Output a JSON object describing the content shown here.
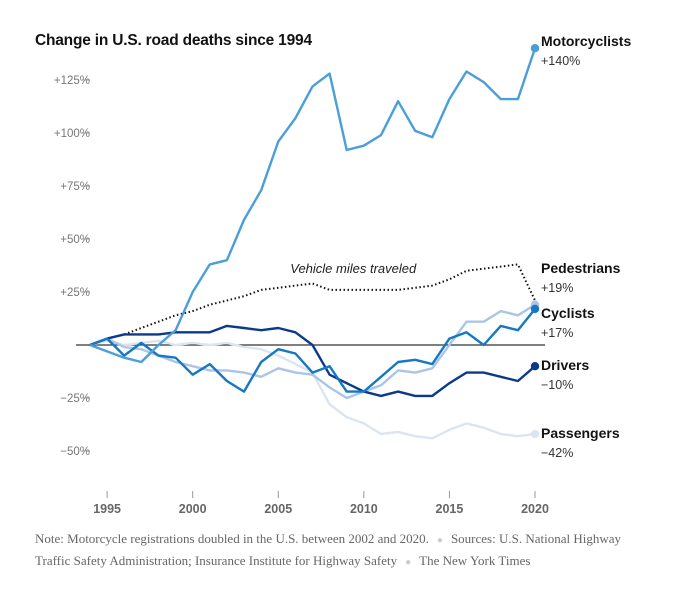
{
  "chart_data": {
    "type": "line",
    "title": "Change in U.S. road deaths since 1994",
    "xlabel": "",
    "ylabel": "",
    "x": [
      1994,
      1995,
      1996,
      1997,
      1998,
      1999,
      2000,
      2001,
      2002,
      2003,
      2004,
      2005,
      2006,
      2007,
      2008,
      2009,
      2010,
      2011,
      2012,
      2013,
      2014,
      2015,
      2016,
      2017,
      2018,
      2019,
      2020
    ],
    "xlim": [
      1994,
      2020
    ],
    "ylim": [
      -62,
      150
    ],
    "x_ticks": [
      1995,
      2000,
      2005,
      2010,
      2015,
      2020
    ],
    "x_tick_labels": [
      "1995",
      "2000",
      "2005",
      "2010",
      "2015",
      "2020"
    ],
    "y_ticks": [
      125,
      100,
      75,
      50,
      25,
      -25,
      -50
    ],
    "y_tick_labels": [
      "+125%",
      "+100%",
      "+75%",
      "+50%",
      "+25%",
      "−25%",
      "−50%"
    ],
    "zero_line": true,
    "grid": false,
    "series": [
      {
        "name": "Passengers",
        "end_label": "−42%",
        "color": "#dbe5f2",
        "style": "solid",
        "values": [
          0,
          2,
          0,
          1,
          2,
          0,
          1,
          0,
          1,
          -1,
          -2,
          -5,
          -9,
          -13,
          -28,
          -34,
          -37,
          -42,
          -41,
          -43,
          -44,
          -40,
          -37,
          -39,
          -42,
          -43,
          -42
        ]
      },
      {
        "name": "Pedestrians",
        "end_label": "+19%",
        "color": "#abc5e7",
        "style": "solid",
        "values": [
          0,
          3,
          -1,
          -2,
          -5,
          -8,
          -10,
          -12,
          -12,
          -13,
          -15,
          -11,
          -13,
          -14,
          -20,
          -25,
          -22,
          -19,
          -12,
          -13,
          -11,
          0,
          11,
          11,
          16,
          14,
          19
        ]
      },
      {
        "name": "Vehicle miles traveled",
        "end_label": "",
        "color": "#111111",
        "style": "dotted",
        "values": [
          0,
          3,
          5,
          8,
          11,
          14,
          16,
          19,
          21,
          23,
          26,
          27,
          28,
          29,
          26,
          26,
          26,
          26,
          26,
          27,
          28,
          31,
          35,
          36,
          37,
          38,
          21
        ]
      },
      {
        "name": "Drivers",
        "end_label": "−10%",
        "color": "#0c3a8a",
        "style": "solid",
        "values": [
          0,
          3,
          5,
          5,
          5,
          6,
          6,
          6,
          9,
          8,
          7,
          8,
          6,
          0,
          -14,
          -18,
          -22,
          -24,
          -22,
          -24,
          -24,
          -18,
          -13,
          -13,
          -15,
          -17,
          -10
        ]
      },
      {
        "name": "Cyclists",
        "end_label": "+17%",
        "color": "#1677c3",
        "style": "solid",
        "values": [
          0,
          3,
          -5,
          1,
          -5,
          -6,
          -14,
          -9,
          -17,
          -22,
          -8,
          -2,
          -4,
          -13,
          -10,
          -22,
          -22,
          -15,
          -8,
          -7,
          -9,
          3,
          6,
          0,
          9,
          7,
          17
        ]
      },
      {
        "name": "Motorcyclists",
        "end_label": "+140%",
        "color": "#4a9fd8",
        "style": "solid",
        "values": [
          0,
          -3,
          -6,
          -8,
          0,
          7,
          25,
          38,
          40,
          59,
          73,
          96,
          107,
          122,
          128,
          92,
          94,
          99,
          115,
          101,
          98,
          116,
          129,
          124,
          116,
          116,
          140
        ]
      }
    ],
    "annotations": [
      {
        "text": "Vehicle miles traveled",
        "x": 2005.7,
        "y": 34
      }
    ]
  },
  "footnote": {
    "note": "Note: Motorcycle registrations doubled in the U.S. between 2002 and 2020.",
    "sources": "Sources: U.S. National Highway Traffic Safety Administration; Insurance Institute for Highway Safety",
    "credit": "The New York Times"
  }
}
